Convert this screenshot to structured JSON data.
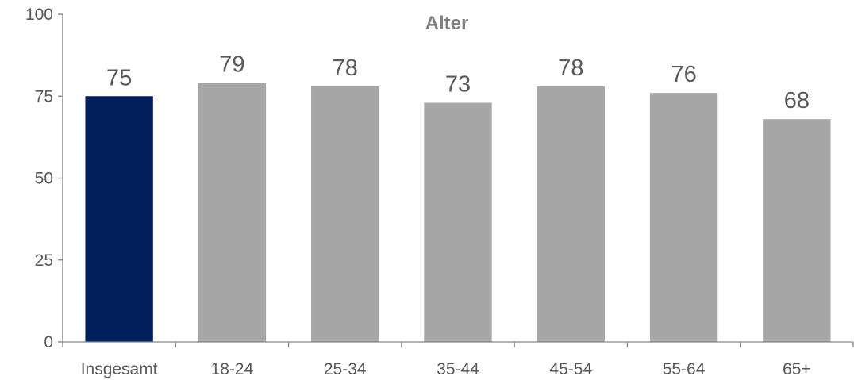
{
  "chart_data": {
    "type": "bar",
    "title": "Alter",
    "xlabel": "",
    "ylabel": "",
    "categories": [
      "Insgesamt",
      "18-24",
      "25-34",
      "35-44",
      "45-54",
      "55-64",
      "65+"
    ],
    "values": [
      75,
      79,
      78,
      73,
      78,
      76,
      68
    ],
    "data_labels": [
      "75",
      "79",
      "78",
      "73",
      "78",
      "76",
      "68"
    ],
    "ylim": [
      0,
      100
    ],
    "yticks": [
      0,
      25,
      50,
      75,
      100
    ],
    "ytick_labels": [
      "0",
      "25",
      "50",
      "75",
      "100"
    ],
    "grid": false,
    "legend": "none",
    "colors": {
      "highlight": "#001f5b",
      "default": "#a6a6a6"
    },
    "highlight_index": 0
  }
}
